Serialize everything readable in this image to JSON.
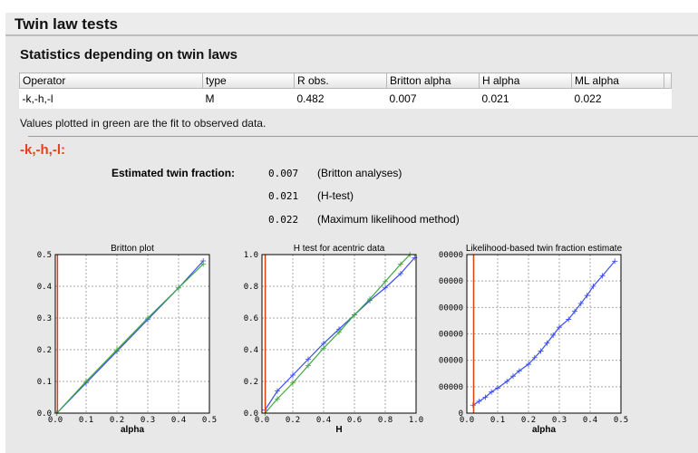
{
  "header": {
    "title": "Twin law tests"
  },
  "section": {
    "title": "Statistics depending on twin laws"
  },
  "table": {
    "columns": [
      "Operator",
      "type",
      "R obs.",
      "Britton alpha",
      "H alpha",
      "ML alpha",
      ""
    ],
    "rows": [
      [
        "-k,-h,-l",
        "M",
        "0.482",
        "0.007",
        "0.021",
        "0.022"
      ]
    ]
  },
  "note": "Values plotted in green are the fit to observed data.",
  "twin_law": {
    "operator": "-k,-h,-l:",
    "estimate_label": "Estimated twin fraction:",
    "estimates": [
      {
        "value": "0.007",
        "method": "(Britton analyses)"
      },
      {
        "value": "0.021",
        "method": "(H-test)"
      },
      {
        "value": "0.022",
        "method": "(Maximum likelihood method)"
      }
    ]
  },
  "colors": {
    "observed": "#3a4cf0",
    "fit": "#3aa63a",
    "estimate": "#e04010",
    "operator": "#e8401c"
  },
  "chart_data": [
    {
      "type": "line",
      "title": "Britton plot",
      "xlabel": "alpha",
      "xlim": [
        0,
        0.5
      ],
      "ylim": [
        0,
        0.5
      ],
      "xticks": [
        "0.0",
        "0.1",
        "0.2",
        "0.3",
        "0.4",
        "0.5"
      ],
      "yticks": [
        "0.0",
        "0.1",
        "0.2",
        "0.3",
        "0.4",
        "0.5"
      ],
      "grid": true,
      "vline": 0.007,
      "series": [
        {
          "color": "observed",
          "x": [
            0.005,
            0.1,
            0.2,
            0.3,
            0.4,
            0.48
          ],
          "y": [
            0.0,
            0.095,
            0.195,
            0.295,
            0.395,
            0.48
          ]
        },
        {
          "color": "fit",
          "x": [
            0.005,
            0.1,
            0.2,
            0.3,
            0.4,
            0.48
          ],
          "y": [
            0.0,
            0.1,
            0.2,
            0.3,
            0.395,
            0.47
          ]
        }
      ]
    },
    {
      "type": "line",
      "title": "H test for acentric data",
      "xlabel": "H",
      "xlim": [
        0,
        1
      ],
      "ylim": [
        0,
        1
      ],
      "xticks": [
        "0.0",
        "0.2",
        "0.4",
        "0.6",
        "0.8",
        "1.0"
      ],
      "yticks": [
        "0.0",
        "0.2",
        "0.4",
        "0.6",
        "0.8",
        "1.0"
      ],
      "grid": true,
      "vline": 0.021,
      "series": [
        {
          "color": "observed",
          "x": [
            0.02,
            0.1,
            0.2,
            0.3,
            0.4,
            0.5,
            0.6,
            0.7,
            0.8,
            0.9,
            0.99
          ],
          "y": [
            0.02,
            0.14,
            0.24,
            0.34,
            0.44,
            0.53,
            0.62,
            0.71,
            0.79,
            0.88,
            0.98
          ]
        },
        {
          "color": "fit",
          "x": [
            0.02,
            0.1,
            0.2,
            0.3,
            0.4,
            0.5,
            0.6,
            0.7,
            0.8,
            0.9,
            0.96
          ],
          "y": [
            0.0,
            0.09,
            0.19,
            0.3,
            0.41,
            0.51,
            0.62,
            0.72,
            0.83,
            0.94,
            1.0
          ]
        }
      ]
    },
    {
      "type": "line",
      "title": "Likelihood-based twin fraction estimate",
      "xlabel": "alpha",
      "xlim": [
        0,
        0.5
      ],
      "ylim": [
        0,
        600000
      ],
      "xticks": [
        "0.0",
        "0.1",
        "0.2",
        "0.3",
        "0.4",
        "0.5"
      ],
      "yticks": [
        "0",
        "00000",
        "00000",
        "00000",
        "00000",
        "00000",
        "00000"
      ],
      "grid": true,
      "vline": 0.022,
      "series": [
        {
          "color": "observed",
          "x": [
            0.02,
            0.04,
            0.06,
            0.08,
            0.1,
            0.13,
            0.15,
            0.17,
            0.2,
            0.22,
            0.24,
            0.26,
            0.28,
            0.3,
            0.33,
            0.35,
            0.37,
            0.39,
            0.41,
            0.44,
            0.48
          ],
          "y": [
            30000,
            45000,
            60000,
            80000,
            95000,
            120000,
            140000,
            160000,
            185000,
            210000,
            235000,
            265000,
            295000,
            325000,
            355000,
            385000,
            415000,
            445000,
            480000,
            520000,
            575000
          ]
        }
      ]
    }
  ]
}
